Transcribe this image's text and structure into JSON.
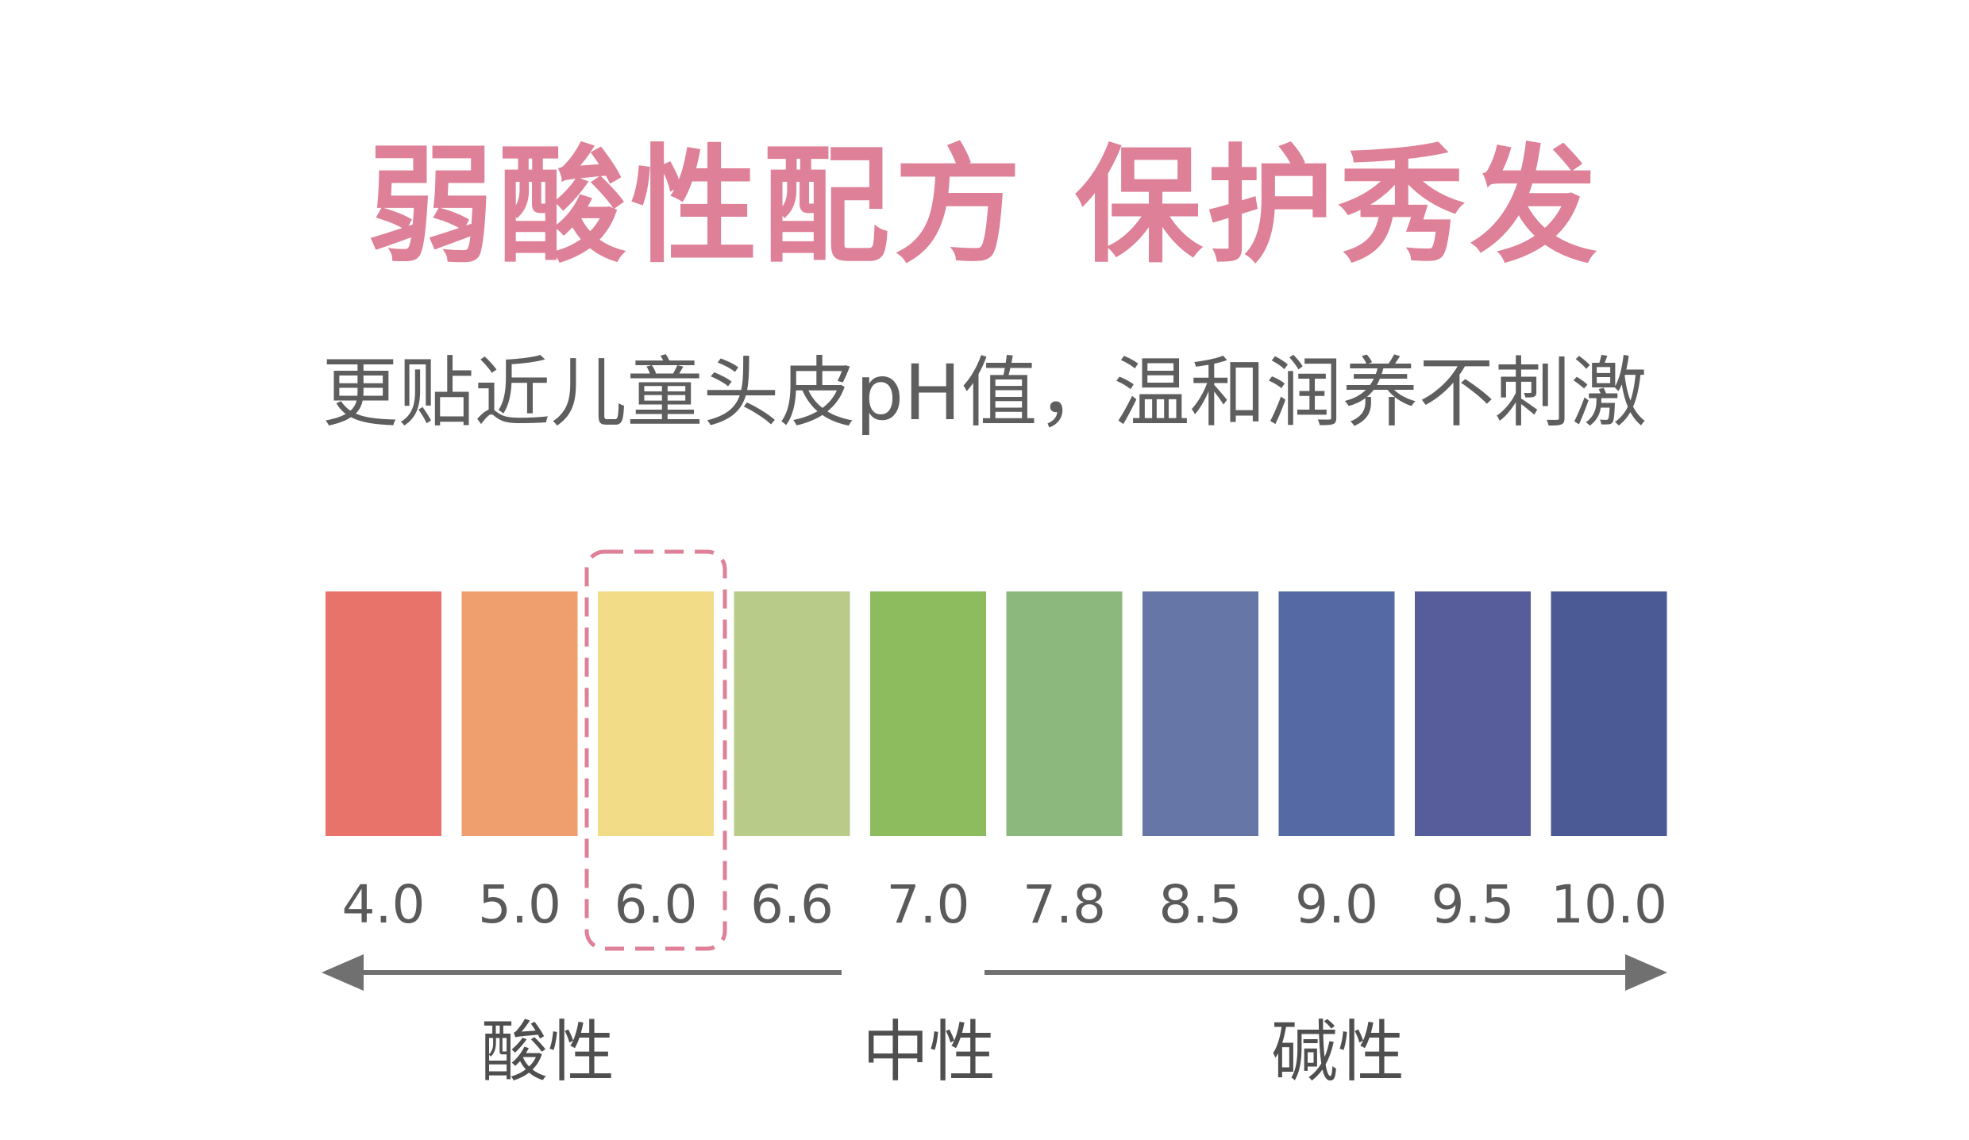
{
  "headline": "弱酸性配方 保护秀发",
  "subtitle": "更贴近儿童头皮pH值，温和润养不刺激",
  "ph_scale": {
    "values": [
      "4.0",
      "5.0",
      "6.0",
      "6.6",
      "7.0",
      "7.8",
      "8.5",
      "9.0",
      "9.5",
      "10.0"
    ],
    "colors": [
      "#e8736a",
      "#ef9f6e",
      "#f2dc88",
      "#b8cb88",
      "#8cbc5e",
      "#8db87d",
      "#6576a7",
      "#5569a5",
      "#575d9b",
      "#4b5995"
    ],
    "highlighted_value": "6.0",
    "highlight_color": "#de8097"
  },
  "labels": {
    "acid": "酸性",
    "neutral": "中性",
    "alkaline": "碱性"
  }
}
